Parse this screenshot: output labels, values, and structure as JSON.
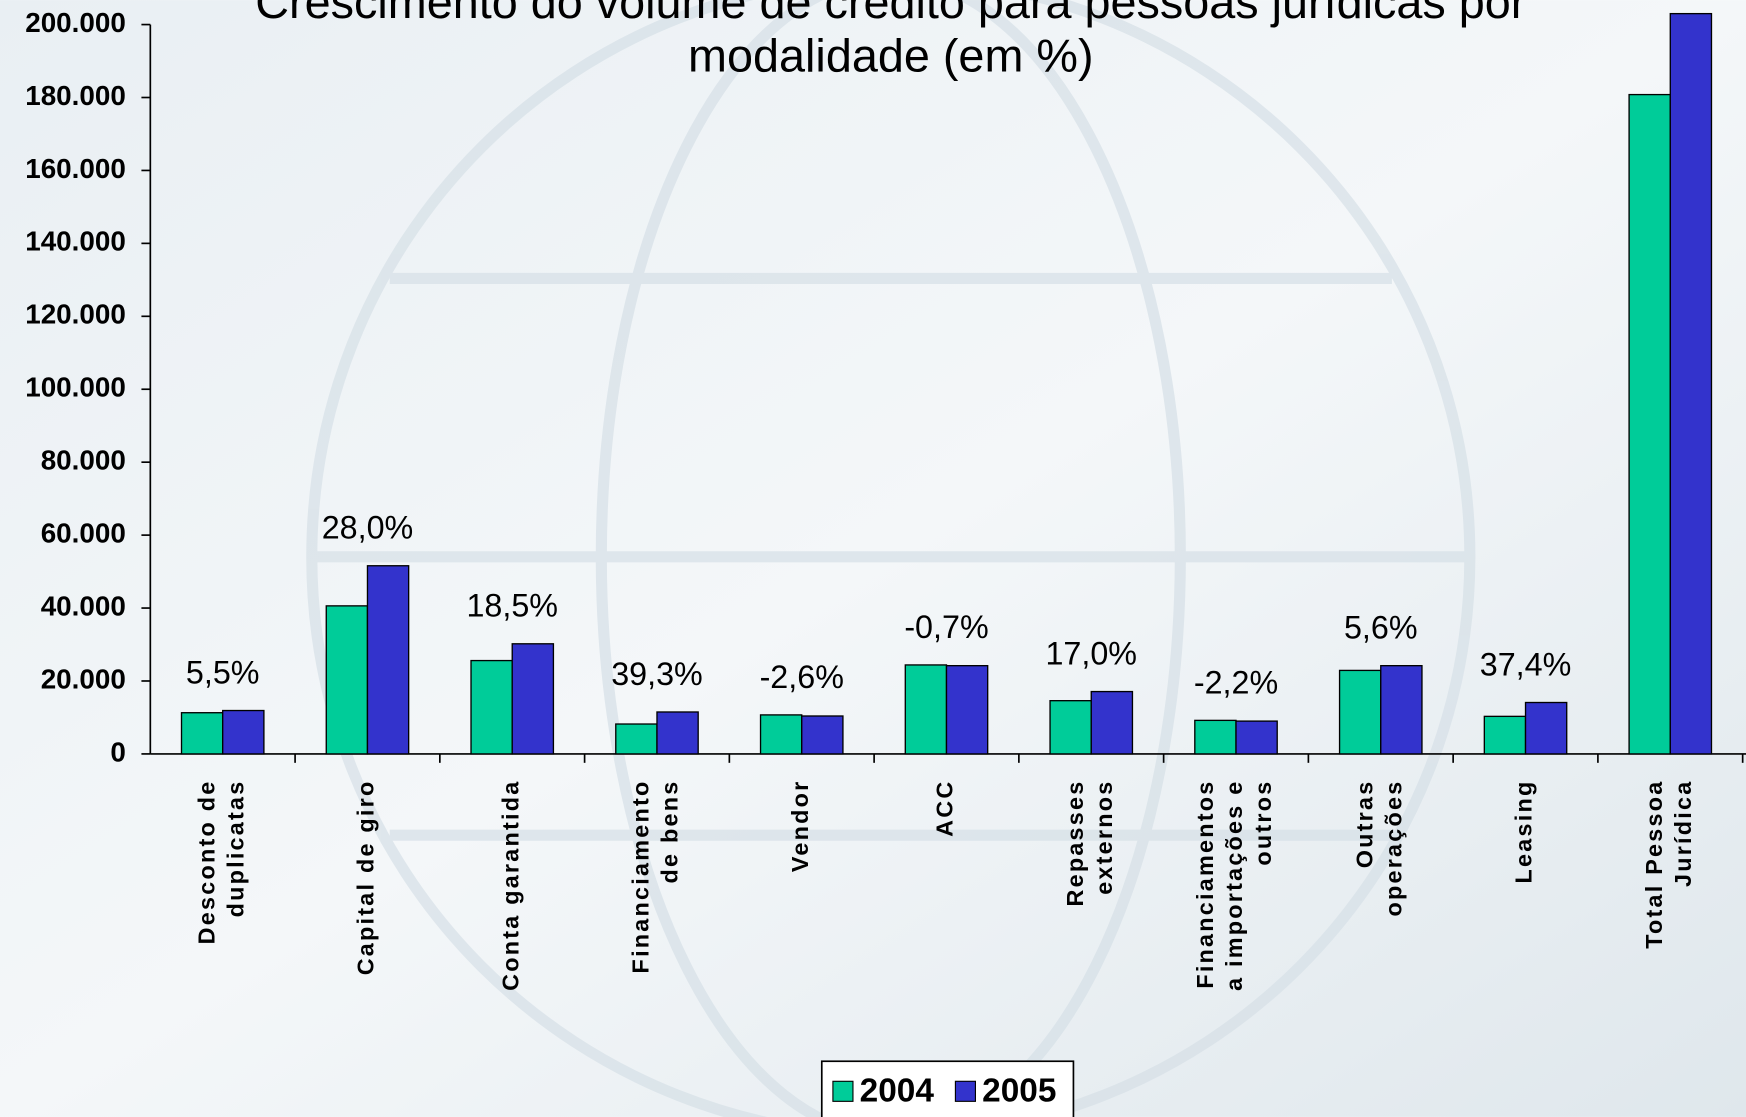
{
  "chart_data": {
    "type": "bar",
    "title": "Crescimento do volume de crédito para pessoas jurídicas por modalidade (em %)",
    "categories": [
      [
        "Desconto de",
        "duplicatas"
      ],
      [
        "Capital de giro"
      ],
      [
        "Conta garantida"
      ],
      [
        "Financiamento",
        "de bens"
      ],
      [
        "Vendor"
      ],
      [
        "ACC"
      ],
      [
        "Repasses",
        "externos"
      ],
      [
        "Financiamentos",
        "a importações e",
        "outros"
      ],
      [
        "Outras",
        "operações"
      ],
      [
        "Leasing"
      ],
      [
        "Total Pessoa",
        "Jurídica"
      ]
    ],
    "series": [
      {
        "name": "2004",
        "color": "#00cc99",
        "values": [
          11300,
          40600,
          25600,
          8200,
          10700,
          24400,
          14600,
          9200,
          22900,
          10300,
          180800
        ]
      },
      {
        "name": "2005",
        "color": "#3333cc",
        "values": [
          11900,
          51600,
          30200,
          11500,
          10400,
          24200,
          17100,
          9000,
          24200,
          14100,
          203000
        ]
      }
    ],
    "growth": {
      "values": [
        5.5,
        28.0,
        18.5,
        39.3,
        -2.6,
        -0.7,
        17.0,
        -2.2,
        5.6,
        37.4
      ],
      "value_labels": [
        "5,5%",
        "28,0%",
        "18,5%",
        "39,3%",
        "-2,6%",
        "-0,7%",
        "17,0%",
        "-2,2%",
        "5,6%",
        "37,4%"
      ]
    },
    "ylim": [
      0,
      200000
    ],
    "yticks": [
      0,
      {
        "value": 20000,
        "label": "20.000"
      },
      {
        "value": 40000,
        "label": "40.000"
      },
      {
        "value": 60000,
        "label": "60.000"
      },
      {
        "value": 80000,
        "label": "80.000"
      },
      {
        "value": 100000,
        "label": "100.000"
      },
      {
        "value": 120000,
        "label": "120.000"
      },
      {
        "value": 140000,
        "label": "140.000"
      },
      {
        "value": 160000,
        "label": "160.000"
      },
      {
        "value": 180000,
        "label": "180.000"
      },
      {
        "value": 200000,
        "label": "200.000"
      }
    ],
    "legend": "bottom"
  }
}
